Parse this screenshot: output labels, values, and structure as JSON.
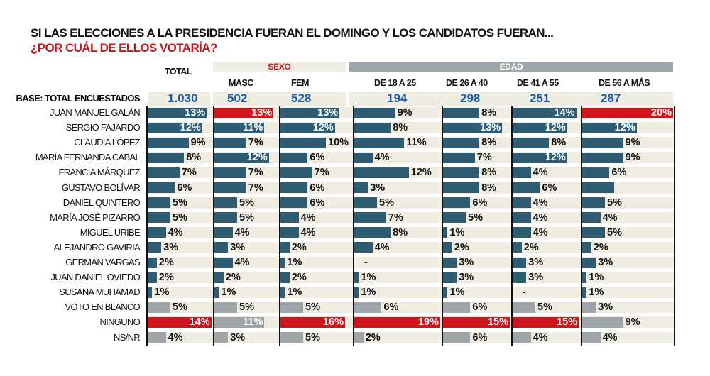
{
  "title_line1": "SI LAS ELECCIONES A LA PRESIDENCIA FUERAN EL DOMINGO Y LOS CANDIDATOS FUERAN...",
  "title_line2": "¿POR CUÁL DE ELLOS VOTARÍA?",
  "groups": {
    "sexo": "SEXO",
    "edad": "EDAD"
  },
  "colors": {
    "candidate": "#2e5d73",
    "highlight": "#d0161b",
    "other": "#9ea5a8",
    "base_number": "#1a5aa6"
  },
  "chart_data": {
    "type": "bar",
    "columns": [
      "TOTAL",
      "MASC",
      "FEM",
      "DE 18 A 25",
      "DE 26 A 40",
      "DE 41 A 55",
      "DE 56 A MÁS"
    ],
    "base_label": "BASE: TOTAL ENCUESTADOS",
    "base": [
      "1.030",
      "502",
      "528",
      "194",
      "298",
      "251",
      "287"
    ],
    "unit": "%",
    "rows": [
      {
        "name": "JUAN MANUEL GALÁN",
        "kind": "candidate",
        "values": [
          13,
          13,
          13,
          9,
          8,
          14,
          20
        ],
        "red": [
          1,
          6
        ]
      },
      {
        "name": "SERGIO FAJARDO",
        "kind": "candidate",
        "values": [
          12,
          11,
          12,
          8,
          13,
          12,
          12
        ],
        "red": []
      },
      {
        "name": "CLAUDIA LÓPEZ",
        "kind": "candidate",
        "values": [
          9,
          7,
          10,
          11,
          8,
          8,
          9
        ],
        "red": []
      },
      {
        "name": "MARÍA FERNANDA CABAL",
        "kind": "candidate",
        "values": [
          8,
          12,
          6,
          4,
          7,
          12,
          9
        ],
        "red": []
      },
      {
        "name": "FRANCIA MÁRQUEZ",
        "kind": "candidate",
        "values": [
          7,
          7,
          7,
          12,
          8,
          4,
          6
        ],
        "red": []
      },
      {
        "name": "GUSTAVO BOLÍVAR",
        "kind": "candidate",
        "values": [
          6,
          7,
          6,
          3,
          8,
          6,
          7
        ],
        "labels": [
          "6%",
          "7%",
          "6%",
          "3%",
          "8%",
          "6%",
          ""
        ],
        "red": []
      },
      {
        "name": "DANIEL QUINTERO",
        "kind": "candidate",
        "values": [
          5,
          5,
          6,
          5,
          6,
          4,
          5
        ],
        "red": []
      },
      {
        "name": "MARÍA JOSÉ PIZARRO",
        "kind": "candidate",
        "values": [
          5,
          5,
          4,
          7,
          5,
          4,
          4
        ],
        "red": []
      },
      {
        "name": "MIGUEL URIBE",
        "kind": "candidate",
        "values": [
          4,
          4,
          4,
          8,
          1,
          4,
          5
        ],
        "red": []
      },
      {
        "name": "ALEJANDRO GAVIRIA",
        "kind": "candidate",
        "values": [
          3,
          3,
          2,
          4,
          2,
          2,
          2
        ],
        "red": []
      },
      {
        "name": "GERMÁN VARGAS",
        "kind": "candidate",
        "values": [
          2,
          4,
          1,
          null,
          3,
          3,
          3
        ],
        "red": []
      },
      {
        "name": "JUAN DANIEL OVIEDO",
        "kind": "candidate",
        "values": [
          2,
          2,
          2,
          1,
          3,
          3,
          1
        ],
        "red": []
      },
      {
        "name": "SUSANA MUHAMAD",
        "kind": "candidate",
        "values": [
          1,
          1,
          1,
          1,
          1,
          null,
          1
        ],
        "red": []
      },
      {
        "name": "VOTO EN BLANCO",
        "kind": "other",
        "values": [
          5,
          5,
          5,
          6,
          6,
          5,
          3
        ],
        "red": []
      },
      {
        "name": "NINGUNO",
        "kind": "other",
        "values": [
          14,
          11,
          16,
          19,
          15,
          15,
          9
        ],
        "red": [
          0,
          2,
          3,
          4,
          5
        ]
      },
      {
        "name": "NS/NR",
        "kind": "other",
        "values": [
          4,
          3,
          5,
          2,
          6,
          4,
          4
        ],
        "red": []
      }
    ]
  }
}
